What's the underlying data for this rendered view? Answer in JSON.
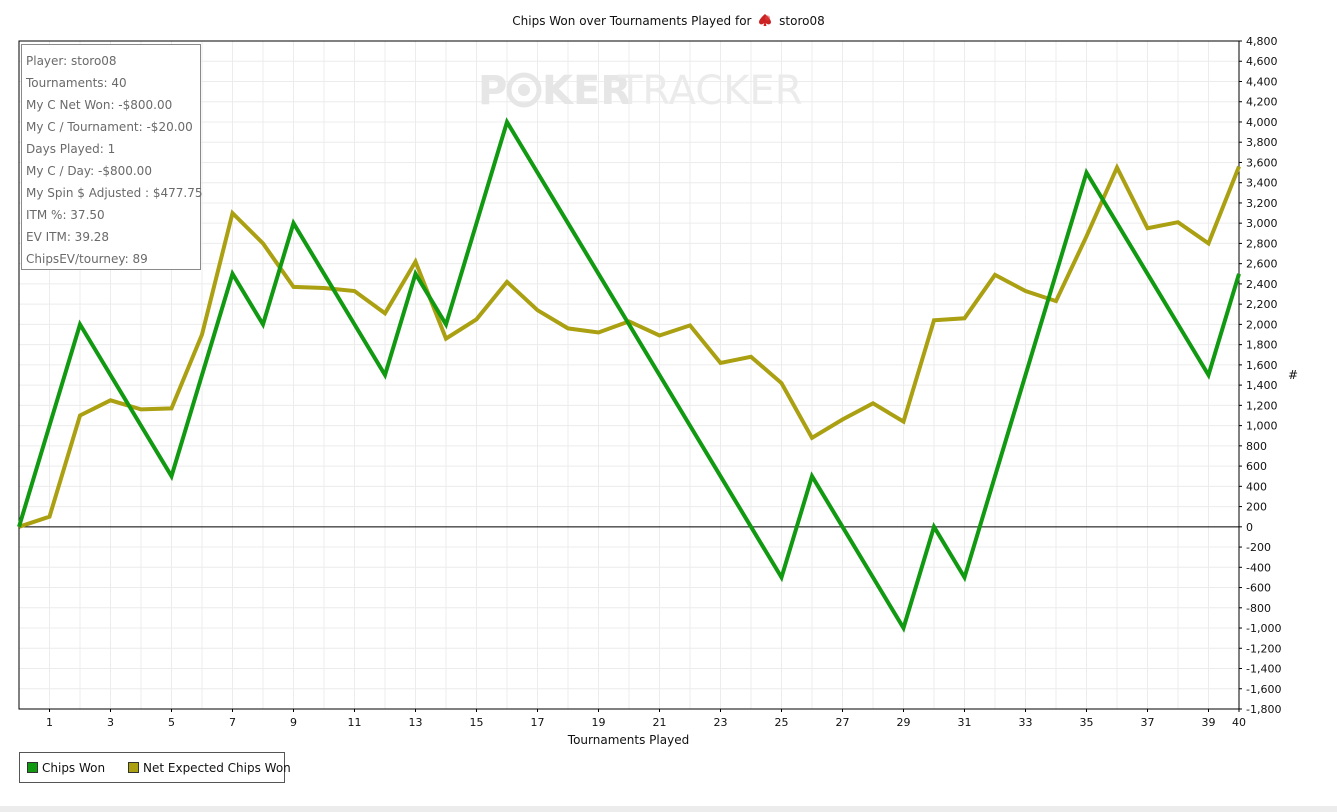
{
  "chart_data": {
    "type": "line",
    "title_prefix": "Chips Won over Tournaments Played for",
    "player_name": "storo08",
    "xlabel": "Tournaments Played",
    "ylabel": "#",
    "xlim": [
      0,
      40
    ],
    "ylim": [
      -1800,
      4800
    ],
    "y_step": 200,
    "x_ticks": [
      1,
      3,
      5,
      7,
      9,
      11,
      13,
      15,
      17,
      19,
      21,
      23,
      25,
      27,
      29,
      31,
      33,
      35,
      37,
      39,
      40
    ],
    "grid": true,
    "legend_position": "bottom-left",
    "series": [
      {
        "name": "Chips Won",
        "color": "#119911",
        "x": [
          0,
          1,
          2,
          3,
          4,
          5,
          6,
          7,
          8,
          9,
          10,
          11,
          12,
          13,
          14,
          15,
          16,
          17,
          18,
          19,
          20,
          21,
          22,
          23,
          24,
          25,
          26,
          27,
          28,
          29,
          30,
          31,
          32,
          33,
          34,
          35,
          36,
          37,
          38,
          39,
          40
        ],
        "values": [
          0,
          1000,
          2000,
          1500,
          1000,
          500,
          1500,
          2500,
          2000,
          3000,
          2500,
          2000,
          1500,
          2500,
          2000,
          3000,
          4000,
          3500,
          3000,
          2500,
          2000,
          1500,
          1000,
          500,
          0,
          -500,
          500,
          0,
          -500,
          -1000,
          0,
          -500,
          500,
          1500,
          2500,
          3500,
          3000,
          2500,
          2000,
          1500,
          2500
        ]
      },
      {
        "name": "Net Expected Chips Won",
        "color": "#aaa011",
        "x": [
          0,
          1,
          2,
          3,
          4,
          5,
          6,
          7,
          8,
          9,
          10,
          11,
          12,
          13,
          14,
          15,
          16,
          17,
          18,
          19,
          20,
          21,
          22,
          23,
          24,
          25,
          26,
          27,
          28,
          29,
          30,
          31,
          32,
          33,
          34,
          35,
          36,
          37,
          38,
          39,
          40
        ],
        "values": [
          0,
          100,
          1100,
          1250,
          1160,
          1170,
          1900,
          3100,
          2800,
          2370,
          2360,
          2330,
          2110,
          2620,
          1860,
          2050,
          2420,
          2140,
          1960,
          1920,
          2030,
          1890,
          1990,
          1620,
          1680,
          1420,
          880,
          1060,
          1220,
          1040,
          2040,
          2060,
          2490,
          2330,
          2230,
          2870,
          3550,
          2950,
          3010,
          2800,
          3560
        ]
      }
    ]
  },
  "stats": {
    "player": "Player: storo08",
    "tournaments": "Tournaments: 40",
    "net_won": "My C Net Won: -$800.00",
    "per_tournament": "My C / Tournament: -$20.00",
    "days_played": "Days Played: 1",
    "per_day": "My C / Day: -$800.00",
    "spin_adjusted": "My Spin $ Adjusted : $477.75",
    "itm": "ITM %: 37.50",
    "ev_itm": "EV ITM: 39.28",
    "chips_ev": "ChipsEV/tourney: 89"
  },
  "watermark": {
    "part1": "P",
    "part2": "KER",
    "part3": "TRACKER"
  },
  "colors": {
    "grid": "#ececec",
    "axis": "#000000",
    "suit": "#cc2222",
    "watermark": "#e6e6e6"
  },
  "icons": {
    "title_suit": "red-spade-icon",
    "watermark_chip": "poker-chip-icon"
  }
}
